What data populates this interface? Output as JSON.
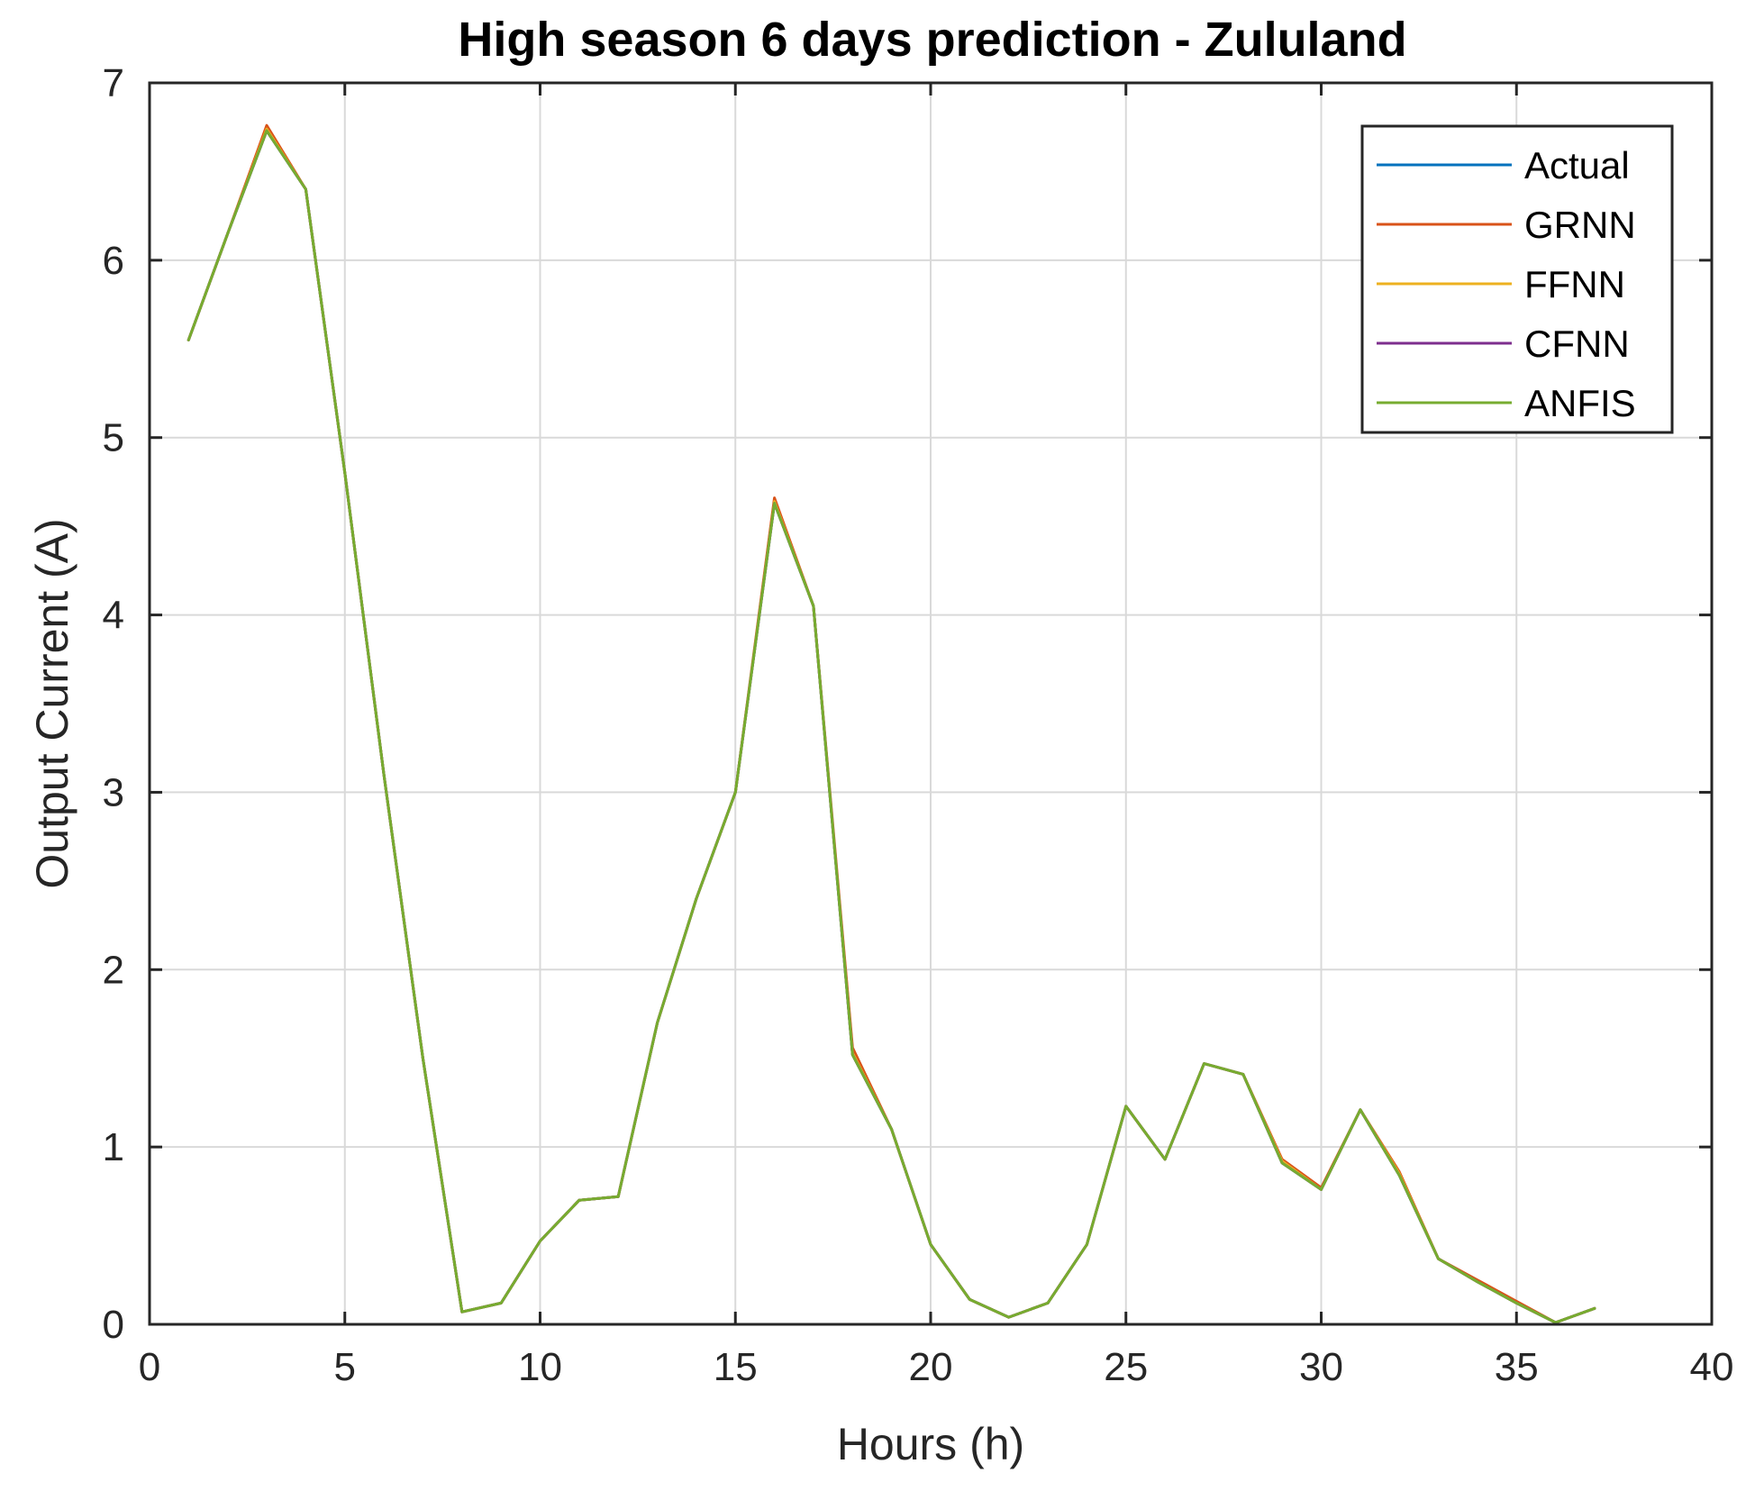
{
  "chart_data": {
    "type": "line",
    "title": "High season 6 days prediction - Zululand",
    "xlabel": "Hours (h)",
    "ylabel": "Output Current (A)",
    "xlim": [
      0,
      40
    ],
    "ylim": [
      0,
      7
    ],
    "xticks": [
      0,
      5,
      10,
      15,
      20,
      25,
      30,
      35,
      40
    ],
    "yticks": [
      0,
      1,
      2,
      3,
      4,
      5,
      6,
      7
    ],
    "grid": true,
    "legend_position": "top-right",
    "x": [
      1,
      2,
      3,
      4,
      5,
      6,
      7,
      8,
      9,
      10,
      11,
      12,
      13,
      14,
      15,
      16,
      17,
      18,
      19,
      20,
      21,
      22,
      23,
      24,
      25,
      26,
      27,
      28,
      29,
      30,
      31,
      32,
      33,
      34,
      35,
      36,
      37
    ],
    "series": [
      {
        "name": "Actual",
        "color": "#0072BD",
        "values": [
          5.55,
          6.15,
          6.73,
          6.4,
          4.8,
          3.1,
          1.5,
          0.07,
          0.12,
          0.47,
          0.7,
          0.72,
          1.7,
          2.4,
          3.0,
          4.63,
          4.05,
          1.52,
          1.1,
          0.45,
          0.14,
          0.04,
          0.12,
          0.45,
          1.23,
          0.93,
          1.47,
          1.41,
          0.91,
          0.76,
          1.21,
          0.84,
          0.37,
          0.24,
          0.12,
          0.01,
          0.09
        ]
      },
      {
        "name": "GRNN",
        "color": "#D95319",
        "values": [
          5.55,
          6.15,
          6.76,
          6.4,
          4.8,
          3.1,
          1.5,
          0.07,
          0.12,
          0.47,
          0.7,
          0.72,
          1.7,
          2.4,
          3.0,
          4.66,
          4.05,
          1.56,
          1.1,
          0.45,
          0.14,
          0.04,
          0.12,
          0.45,
          1.23,
          0.93,
          1.47,
          1.41,
          0.93,
          0.77,
          1.21,
          0.86,
          0.37,
          0.25,
          0.13,
          0.01,
          0.09
        ]
      },
      {
        "name": "FFNN",
        "color": "#EDB120",
        "values": [
          5.55,
          6.15,
          6.74,
          6.4,
          4.8,
          3.1,
          1.5,
          0.07,
          0.12,
          0.47,
          0.7,
          0.72,
          1.7,
          2.4,
          3.0,
          4.64,
          4.05,
          1.53,
          1.1,
          0.45,
          0.14,
          0.04,
          0.12,
          0.45,
          1.23,
          0.93,
          1.47,
          1.41,
          0.92,
          0.76,
          1.21,
          0.85,
          0.37,
          0.24,
          0.12,
          0.01,
          0.09
        ]
      },
      {
        "name": "CFNN",
        "color": "#7E2F8E",
        "values": [
          5.55,
          6.15,
          6.73,
          6.4,
          4.8,
          3.1,
          1.5,
          0.07,
          0.12,
          0.47,
          0.7,
          0.72,
          1.7,
          2.4,
          3.0,
          4.63,
          4.05,
          1.52,
          1.1,
          0.45,
          0.14,
          0.04,
          0.12,
          0.45,
          1.23,
          0.93,
          1.47,
          1.41,
          0.91,
          0.76,
          1.21,
          0.84,
          0.37,
          0.24,
          0.12,
          0.01,
          0.09
        ]
      },
      {
        "name": "ANFIS",
        "color": "#77AC30",
        "values": [
          5.55,
          6.15,
          6.73,
          6.4,
          4.8,
          3.1,
          1.5,
          0.07,
          0.12,
          0.47,
          0.7,
          0.72,
          1.7,
          2.4,
          3.0,
          4.63,
          4.05,
          1.52,
          1.1,
          0.45,
          0.14,
          0.04,
          0.12,
          0.45,
          1.23,
          0.93,
          1.47,
          1.41,
          0.91,
          0.76,
          1.21,
          0.84,
          0.37,
          0.24,
          0.12,
          0.01,
          0.09
        ]
      }
    ]
  }
}
